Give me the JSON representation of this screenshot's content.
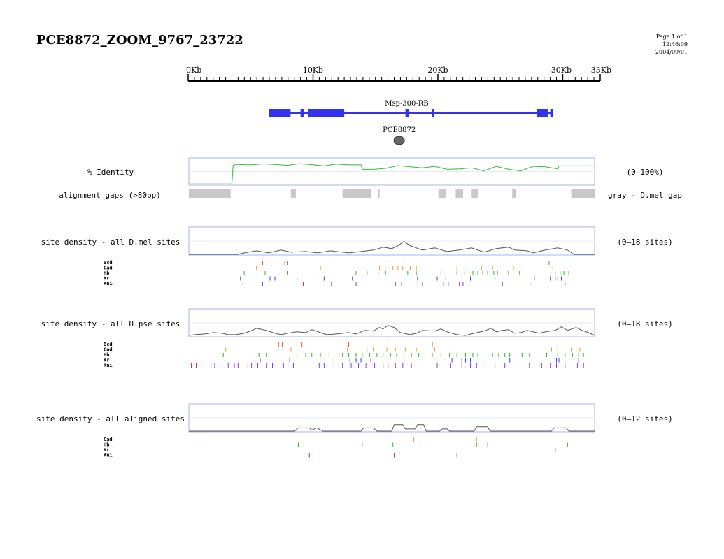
{
  "title": "PCE8872_ZOOM_9767_23722",
  "page_meta": [
    "Page 1 of 1",
    "12:46:09",
    "2004/09/01"
  ],
  "scale": {
    "total_kb": 33,
    "labels": [
      {
        "text": "0Kb",
        "kb": 0
      },
      {
        "text": "10Kb",
        "kb": 10
      },
      {
        "text": "20Kb",
        "kb": 20
      },
      {
        "text": "30Kb",
        "kb": 30
      },
      {
        "text": "33Kb",
        "kb": 33
      }
    ]
  },
  "gene": {
    "name": "Msp-300-RB",
    "color": "#3333ee",
    "start_kb": 6.5,
    "end_kb": 29.2,
    "exons_kb": [
      [
        6.5,
        8.2
      ],
      [
        9.0,
        9.3
      ],
      [
        9.6,
        12.5
      ],
      [
        17.4,
        17.7
      ],
      [
        19.5,
        19.7
      ],
      [
        27.9,
        28.8
      ],
      [
        29.0,
        29.2
      ]
    ]
  },
  "element": {
    "name": "PCE8872",
    "kb": 16.9,
    "color": "#666666"
  },
  "identity": {
    "label": "% Identity",
    "range_label": "(0–100%)",
    "color": "#33bb33",
    "points": [
      [
        0,
        2
      ],
      [
        3.5,
        2
      ],
      [
        3.6,
        76
      ],
      [
        3.9,
        80
      ],
      [
        5,
        78
      ],
      [
        6,
        82
      ],
      [
        7,
        80
      ],
      [
        8,
        76
      ],
      [
        9,
        83
      ],
      [
        10,
        79
      ],
      [
        11,
        74
      ],
      [
        12,
        81
      ],
      [
        13,
        78
      ],
      [
        14,
        78
      ],
      [
        14.1,
        60
      ],
      [
        15,
        60
      ],
      [
        16,
        64
      ],
      [
        17,
        75
      ],
      [
        18,
        70
      ],
      [
        19,
        66
      ],
      [
        20,
        72
      ],
      [
        21,
        60
      ],
      [
        22,
        62
      ],
      [
        23,
        66
      ],
      [
        24,
        54
      ],
      [
        25,
        72
      ],
      [
        26,
        60
      ],
      [
        27,
        54
      ],
      [
        28,
        72
      ],
      [
        29,
        70
      ],
      [
        30,
        62
      ],
      [
        30.1,
        74
      ],
      [
        33,
        74
      ]
    ]
  },
  "gaps": {
    "label": "alignment gaps (>80bp)",
    "legend": "gray - D.mel gap",
    "color": "#c8c8c8",
    "segments_kb": [
      [
        0,
        3.4
      ],
      [
        8.3,
        8.7
      ],
      [
        12.5,
        14.8
      ],
      [
        15.4,
        15.5
      ],
      [
        20.3,
        20.9
      ],
      [
        21.7,
        22.3
      ],
      [
        23.0,
        23.5
      ],
      [
        26.3,
        26.6
      ],
      [
        31.1,
        33
      ]
    ]
  },
  "tracks": [
    {
      "label": "site density - all D.mel sites",
      "range_label": "(0–18 sites)",
      "max": 18,
      "density": [
        [
          0,
          0
        ],
        [
          4,
          0
        ],
        [
          4.5,
          1
        ],
        [
          5.5,
          2.5
        ],
        [
          6.5,
          1
        ],
        [
          7.5,
          3
        ],
        [
          8.3,
          1.5
        ],
        [
          9.5,
          2
        ],
        [
          10.5,
          1
        ],
        [
          11.5,
          2.5
        ],
        [
          13,
          1
        ],
        [
          14,
          2
        ],
        [
          15,
          3
        ],
        [
          15.8,
          5
        ],
        [
          16.5,
          4
        ],
        [
          17,
          6
        ],
        [
          17.5,
          9
        ],
        [
          18,
          6
        ],
        [
          19,
          3
        ],
        [
          20,
          4.5
        ],
        [
          21,
          2
        ],
        [
          22,
          3
        ],
        [
          23,
          4.5
        ],
        [
          24,
          1.5
        ],
        [
          25,
          4
        ],
        [
          26,
          5
        ],
        [
          26.5,
          3
        ],
        [
          27.5,
          2.5
        ],
        [
          28,
          1
        ],
        [
          29,
          3
        ],
        [
          30,
          4.5
        ],
        [
          30.8,
          3
        ],
        [
          31.3,
          0
        ],
        [
          33,
          0
        ]
      ],
      "factors": [
        {
          "name": "Bcd",
          "color": "#ee5522",
          "sites_kb": [
            6.0,
            7.8,
            8.0,
            29.3
          ]
        },
        {
          "name": "Cad",
          "color": "#ee9922",
          "sites_kb": [
            5.5,
            10.7,
            15.5,
            16.6,
            17.0,
            17.4,
            18.0,
            18.5,
            19.2,
            21.8,
            23.8,
            24.7,
            26.4,
            29.6
          ]
        },
        {
          "name": "Hb",
          "color": "#22bb22",
          "sites_kb": [
            4.5,
            6.2,
            8.0,
            10.5,
            13.6,
            14.5,
            15.4,
            16.0,
            17.1,
            17.8,
            18.5,
            20.5,
            21.8,
            22.4,
            23.1,
            23.5,
            23.9,
            24.3,
            24.8,
            25.1,
            26.0,
            26.9,
            29.8,
            30.2,
            30.5,
            30.9
          ]
        },
        {
          "name": "Kr",
          "color": "#3344dd",
          "sites_kb": [
            4.2,
            6.6,
            7.0,
            8.8,
            11.0,
            13.3,
            18.6,
            20.2,
            20.9,
            22.9,
            24.9,
            26.2,
            28.1,
            29.4,
            29.8,
            30.0,
            30.3
          ]
        },
        {
          "name": "Kni",
          "color": "#8833ee",
          "sites_kb": [
            4.4,
            6.0,
            9.3,
            11.6,
            13.6,
            16.8,
            17.1,
            17.3,
            19.0,
            20.7,
            21.1,
            22.0,
            22.3,
            25.5,
            26.2,
            27.9,
            30.6
          ]
        }
      ]
    },
    {
      "label": "site density - all D.pse sites",
      "range_label": "(0–18 sites)",
      "max": 18,
      "density": [
        [
          0,
          0.5
        ],
        [
          0.5,
          1
        ],
        [
          1.3,
          1.5
        ],
        [
          2,
          2.5
        ],
        [
          2.7,
          2
        ],
        [
          3.2,
          1
        ],
        [
          3.8,
          1
        ],
        [
          4.5,
          2
        ],
        [
          5,
          3.5
        ],
        [
          5.5,
          5.5
        ],
        [
          6.3,
          4
        ],
        [
          7,
          2
        ],
        [
          7.5,
          1
        ],
        [
          8,
          2
        ],
        [
          8.8,
          3
        ],
        [
          9.5,
          2.5
        ],
        [
          10,
          4.5
        ],
        [
          10.7,
          2.5
        ],
        [
          11.2,
          1
        ],
        [
          12,
          1.5
        ],
        [
          13,
          2.5
        ],
        [
          13.6,
          1.5
        ],
        [
          14.3,
          4
        ],
        [
          15,
          3.5
        ],
        [
          15.5,
          6
        ],
        [
          15.8,
          5
        ],
        [
          16.2,
          7.5
        ],
        [
          16.7,
          6
        ],
        [
          17.2,
          2.5
        ],
        [
          18,
          1
        ],
        [
          18.5,
          2
        ],
        [
          19,
          4
        ],
        [
          20,
          3.5
        ],
        [
          20.5,
          5
        ],
        [
          21,
          3
        ],
        [
          21.8,
          1
        ],
        [
          22.5,
          0.5
        ],
        [
          23.2,
          2
        ],
        [
          24,
          3.5
        ],
        [
          24.6,
          5.5
        ],
        [
          25,
          3
        ],
        [
          25.5,
          4
        ],
        [
          26,
          4.5
        ],
        [
          26.5,
          2
        ],
        [
          27,
          2.5
        ],
        [
          27.5,
          4
        ],
        [
          28,
          3
        ],
        [
          28.5,
          2
        ],
        [
          29,
          3
        ],
        [
          29.8,
          4
        ],
        [
          30.3,
          6.5
        ],
        [
          30.8,
          4
        ],
        [
          31.5,
          6
        ],
        [
          32,
          4
        ],
        [
          32.5,
          2.5
        ],
        [
          33,
          0.5
        ]
      ],
      "factors": [
        {
          "name": "Bcd",
          "color": "#ee5522",
          "sites_kb": [
            7.3,
            7.6,
            9.2,
            13.0,
            19.8
          ]
        },
        {
          "name": "Cad",
          "color": "#ee9922",
          "sites_kb": [
            3.0,
            8.3,
            12.9,
            14.5,
            15.0,
            16.1,
            16.8,
            17.6,
            18.5,
            20.0,
            29.5,
            30.0,
            31.1,
            31.5,
            31.8
          ]
        },
        {
          "name": "Hb",
          "color": "#22bb22",
          "sites_kb": [
            2.8,
            5.7,
            6.3,
            8.8,
            9.5,
            10.0,
            10.7,
            11.4,
            12.5,
            13.0,
            13.6,
            14.1,
            14.7,
            15.3,
            15.8,
            16.4,
            16.9,
            17.5,
            18.1,
            18.7,
            19.2,
            19.8,
            20.5,
            21.2,
            21.8,
            22.5,
            23.1,
            23.5,
            24.1,
            24.7,
            25.2,
            25.7,
            26.1,
            26.6,
            27.1,
            27.7,
            29.1,
            30.0,
            30.6,
            31.2,
            31.7,
            32.1
          ]
        },
        {
          "name": "Kr",
          "color": "#3344dd",
          "sites_kb": [
            5.8,
            8.2,
            10.1,
            13.1,
            13.6,
            14.0,
            14.8,
            17.5,
            21.4,
            22.2,
            22.5,
            22.9,
            26.1,
            29.9,
            30.1,
            31.7
          ]
        },
        {
          "name": "Kni",
          "color": "#8833ee",
          "sites_kb": [
            0.2,
            0.6,
            1.0,
            1.8,
            2.1,
            2.7,
            3.2,
            3.7,
            4.0,
            4.8,
            5.1,
            5.6,
            6.3,
            6.8,
            7.7,
            8.5,
            10.6,
            11.0,
            11.8,
            12.2,
            12.5,
            13.2,
            13.8,
            14.4,
            15.1,
            15.8,
            16.2,
            16.8,
            17.4,
            18.1,
            20.2,
            21.3,
            22.2,
            22.9,
            23.4,
            24.1,
            24.9,
            25.7,
            26.6,
            27.7,
            28.7,
            29.4,
            29.9,
            30.6,
            31.6,
            32.1
          ]
        }
      ]
    },
    {
      "label": "site density - all aligned sites",
      "range_label": "(0–12 sites)",
      "max": 12,
      "density": [
        [
          0,
          0
        ],
        [
          8.6,
          0
        ],
        [
          8.9,
          1.5
        ],
        [
          9.8,
          1.5
        ],
        [
          10,
          0.5
        ],
        [
          10.4,
          1.5
        ],
        [
          10.9,
          0
        ],
        [
          14,
          0
        ],
        [
          14.2,
          1.5
        ],
        [
          15,
          1.5
        ],
        [
          15.3,
          0
        ],
        [
          16.5,
          0
        ],
        [
          16.7,
          3
        ],
        [
          17.4,
          3
        ],
        [
          17.6,
          1
        ],
        [
          18.4,
          1
        ],
        [
          18.6,
          3
        ],
        [
          19.1,
          3
        ],
        [
          19.3,
          0
        ],
        [
          20.4,
          0
        ],
        [
          20.6,
          1
        ],
        [
          21,
          1
        ],
        [
          21.2,
          0
        ],
        [
          23.2,
          0
        ],
        [
          23.4,
          2
        ],
        [
          24.3,
          2
        ],
        [
          24.5,
          0
        ],
        [
          29.5,
          0
        ],
        [
          29.7,
          1.5
        ],
        [
          30.7,
          1.5
        ],
        [
          30.9,
          0
        ],
        [
          33,
          0
        ]
      ],
      "factors": [
        {
          "name": "Cad",
          "color": "#ee9922",
          "sites_kb": [
            17.1,
            18.3,
            18.8,
            23.4
          ]
        },
        {
          "name": "Hb",
          "color": "#22bb22",
          "sites_kb": [
            8.9,
            14.1,
            16.6,
            18.8,
            23.4,
            24.3,
            30.8
          ]
        },
        {
          "name": "Kr",
          "color": "#3344dd",
          "sites_kb": [
            29.8
          ]
        },
        {
          "name": "Kni",
          "color": "#8833ee",
          "sites_kb": [
            9.8,
            16.7,
            21.8
          ]
        }
      ]
    }
  ]
}
